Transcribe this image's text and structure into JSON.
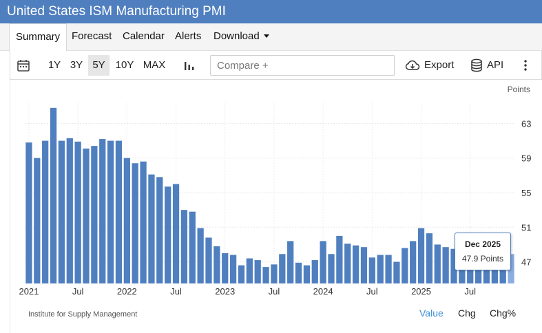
{
  "header": {
    "title": "United States ISM Manufacturing PMI"
  },
  "nav": {
    "tabs": [
      {
        "label": "Summary"
      },
      {
        "label": "Forecast"
      },
      {
        "label": "Calendar"
      },
      {
        "label": "Alerts"
      },
      {
        "label": "Download"
      }
    ]
  },
  "toolbar": {
    "ranges": [
      "1Y",
      "3Y",
      "5Y",
      "10Y",
      "MAX"
    ],
    "active_range": "5Y",
    "compare_placeholder": "Compare +",
    "export_label": "Export",
    "api_label": "API"
  },
  "footer": {
    "source": "Institute for Supply Management",
    "views": [
      "Value",
      "Chg",
      "Chg%"
    ],
    "active_view": "Value"
  },
  "tooltip": {
    "date": "Dec 2025",
    "value_text": "47.9 Points"
  },
  "chart_data": {
    "type": "bar",
    "title": "United States ISM Manufacturing PMI",
    "ylabel": "Points",
    "ylim": [
      44.5,
      65.5
    ],
    "yticks": [
      47,
      51,
      55,
      59,
      63
    ],
    "xticks": [
      {
        "label": "2021",
        "index": 0
      },
      {
        "label": "Jul",
        "index": 6
      },
      {
        "label": "2022",
        "index": 12
      },
      {
        "label": "Jul",
        "index": 18
      },
      {
        "label": "2023",
        "index": 24
      },
      {
        "label": "Jul",
        "index": 30
      },
      {
        "label": "2024",
        "index": 36
      },
      {
        "label": "Jul",
        "index": 42
      },
      {
        "label": "2025",
        "index": 48
      },
      {
        "label": "Jul",
        "index": 54
      }
    ],
    "bar_color": "#4f7fbf",
    "highlight_color": "#8aaee0",
    "categories": [
      "Jan 2021",
      "Feb 2021",
      "Mar 2021",
      "Apr 2021",
      "May 2021",
      "Jun 2021",
      "Jul 2021",
      "Aug 2021",
      "Sep 2021",
      "Oct 2021",
      "Nov 2021",
      "Dec 2021",
      "Jan 2022",
      "Feb 2022",
      "Mar 2022",
      "Apr 2022",
      "May 2022",
      "Jun 2022",
      "Jul 2022",
      "Aug 2022",
      "Sep 2022",
      "Oct 2022",
      "Nov 2022",
      "Dec 2022",
      "Jan 2023",
      "Feb 2023",
      "Mar 2023",
      "Apr 2023",
      "May 2023",
      "Jun 2023",
      "Jul 2023",
      "Aug 2023",
      "Sep 2023",
      "Oct 2023",
      "Nov 2023",
      "Dec 2023",
      "Jan 2024",
      "Feb 2024",
      "Mar 2024",
      "Apr 2024",
      "May 2024",
      "Jun 2024",
      "Jul 2024",
      "Aug 2024",
      "Sep 2024",
      "Oct 2024",
      "Nov 2024",
      "Dec 2024",
      "Jan 2025",
      "Feb 2025",
      "Mar 2025",
      "Apr 2025",
      "May 2025",
      "Jun 2025",
      "Jul 2025",
      "Aug 2025",
      "Sep 2025",
      "Oct 2025",
      "Nov 2025",
      "Dec 2025"
    ],
    "values": [
      60.8,
      59.0,
      61.0,
      64.8,
      61.0,
      61.3,
      60.9,
      60.1,
      60.4,
      61.2,
      61.0,
      61.0,
      59.0,
      58.4,
      58.6,
      57.1,
      56.8,
      55.7,
      56.0,
      53.0,
      52.8,
      50.9,
      49.8,
      48.8,
      48.0,
      47.8,
      46.6,
      47.4,
      47.2,
      46.4,
      46.7,
      47.9,
      49.4,
      46.9,
      46.6,
      47.2,
      49.4,
      47.9,
      50.0,
      49.1,
      48.9,
      48.7,
      47.5,
      47.8,
      47.8,
      47.0,
      48.6,
      49.4,
      50.9,
      50.3,
      49.0,
      48.7,
      48.5,
      49.0,
      48.0,
      48.7,
      49.1,
      48.7,
      48.2,
      47.9
    ]
  }
}
